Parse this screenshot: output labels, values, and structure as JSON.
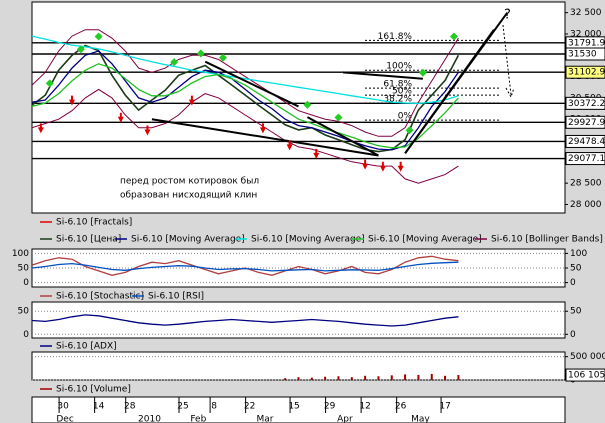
{
  "chart_data": [
    {
      "type": "line",
      "x": [
        0,
        3,
        6,
        9,
        12,
        15,
        18,
        21,
        24,
        27,
        30,
        33,
        36,
        39,
        42,
        45,
        48,
        51,
        54,
        57,
        60,
        63,
        66,
        69,
        72,
        75,
        78,
        81,
        84,
        87,
        90,
        93,
        96
      ],
      "xlim": [
        0,
        120
      ],
      "ylim": [
        27800,
        32750
      ],
      "yticks": [
        {
          "value": 28000,
          "label": "28 000"
        },
        {
          "value": 28500,
          "label": "28 500"
        },
        {
          "value": 29000,
          "label": "29 000"
        },
        {
          "value": 29500,
          "label": "29 500"
        },
        {
          "value": 30000,
          "label": "30 000"
        },
        {
          "value": 30500,
          "label": "30 500"
        },
        {
          "value": 31000,
          "label": "31 000"
        },
        {
          "value": 31500,
          "label": "31 500"
        },
        {
          "value": 32000,
          "label": "32 000"
        },
        {
          "value": 32500,
          "label": "32 500"
        }
      ],
      "fractals": {
        "name": "Si-6.10 [Fractals]",
        "color": "#e00000",
        "up_color": "#22cc22",
        "up": {
          "x": [
            4,
            11,
            15,
            32,
            38,
            43,
            62,
            69,
            85,
            88,
            95
          ],
          "values": [
            30700,
            31500,
            31800,
            31200,
            31400,
            31300,
            30200,
            29900,
            29600,
            30950,
            31800
          ]
        },
        "down": {
          "x": [
            2,
            9,
            20,
            26,
            36,
            52,
            58,
            64,
            75,
            79,
            83
          ],
          "values": [
            29950,
            30600,
            30200,
            29900,
            30600,
            29950,
            29550,
            29350,
            29100,
            29050,
            29050
          ]
        }
      },
      "series": [
        {
          "name": "Si-6.10 [Цена]",
          "color": "#1a3a1a",
          "values": [
            30330,
            30565,
            31150,
            31500,
            31730,
            31610,
            31030,
            30565,
            30215,
            30450,
            30680,
            31030,
            31150,
            31260,
            31030,
            30800,
            30565,
            30330,
            30100,
            29870,
            29750,
            29800,
            29630,
            29520,
            29400,
            29290,
            29240,
            29290,
            29520,
            30215,
            30565,
            30910,
            31500
          ]
        },
        {
          "name": "Si-6.10 [Moving Average]",
          "color": "#000080",
          "values": [
            30400,
            30450,
            30800,
            31200,
            31500,
            31600,
            31300,
            30900,
            30500,
            30400,
            30500,
            30750,
            31000,
            31150,
            31100,
            30950,
            30700,
            30450,
            30250,
            30000,
            29850,
            29800,
            29700,
            29600,
            29480,
            29380,
            29300,
            29280,
            29380,
            29800,
            30300,
            30650,
            31100
          ]
        },
        {
          "name": "Si-6.10 [Moving Average]",
          "color": "#00e0e0",
          "values": [
            31950,
            31880,
            31800,
            31740,
            31700,
            31650,
            31580,
            31500,
            31420,
            31350,
            31280,
            31220,
            31150,
            31100,
            31050,
            31000,
            30950,
            30900,
            30850,
            30800,
            30750,
            30700,
            30650,
            30600,
            30550,
            30500,
            30450,
            30400,
            30380,
            30370,
            30400,
            30450,
            30550
          ]
        },
        {
          "name": "Si-6.10 [Moving Average]",
          "color": "#22c022",
          "values": [
            30300,
            30380,
            30600,
            30900,
            31150,
            31300,
            31200,
            30950,
            30700,
            30550,
            30550,
            30650,
            30850,
            31000,
            31050,
            30950,
            30800,
            30600,
            30400,
            30200,
            30000,
            29900,
            29780,
            29680,
            29580,
            29470,
            29380,
            29330,
            29350,
            29550,
            29850,
            30150,
            30500
          ]
        }
      ],
      "bands": {
        "name": "Si-6.10 [Bollinger Bands]",
        "color": "#800040",
        "upper": [
          30800,
          31100,
          31600,
          31950,
          32100,
          32100,
          31900,
          31600,
          31200,
          31100,
          31200,
          31400,
          31500,
          31500,
          31400,
          31200,
          31000,
          30800,
          30600,
          30400,
          30200,
          30100,
          30000,
          29950,
          29850,
          29700,
          29600,
          29600,
          29800,
          30400,
          30900,
          31400,
          31900
        ],
        "lower": [
          29800,
          29900,
          30000,
          30200,
          30500,
          30700,
          30500,
          30100,
          29800,
          29800,
          29900,
          30100,
          30400,
          30600,
          30500,
          30300,
          30100,
          29900,
          29700,
          29500,
          29350,
          29300,
          29200,
          29100,
          29000,
          28950,
          28900,
          28900,
          28600,
          28500,
          28600,
          28700,
          28900
        ]
      },
      "levels": [
        31791.9,
        31530,
        31102.9,
        30372.2,
        29927.9,
        29478.4,
        29077.1
      ],
      "fibo": [
        {
          "value": 31850,
          "label": "161.8%"
        },
        {
          "value": 31150,
          "label": "100%"
        },
        {
          "value": 30730,
          "label": "61.8%"
        },
        {
          "value": 30565,
          "label": "50%"
        },
        {
          "value": 30380,
          "label": "38.2%"
        },
        {
          "value": 29980,
          "label": "0%"
        }
      ],
      "trendlines": [
        [
          39,
          31350,
          60,
          30300
        ],
        [
          27,
          30000,
          78,
          29150
        ],
        [
          62,
          30050,
          78,
          29150
        ],
        [
          70,
          31100,
          88,
          30950
        ],
        [
          84,
          29200,
          107,
          32500
        ],
        [
          84,
          29200,
          104,
          32100
        ]
      ],
      "annotations": [
        "перед ростом котировок был",
        "образован нисходящий клин",
        "?"
      ]
    },
    {
      "type": "line",
      "x": [
        0,
        3,
        6,
        9,
        12,
        15,
        18,
        21,
        24,
        27,
        30,
        33,
        36,
        39,
        42,
        45,
        48,
        51,
        54,
        57,
        60,
        63,
        66,
        69,
        72,
        75,
        78,
        81,
        84,
        87,
        90,
        93,
        96
      ],
      "xlim": [
        0,
        120
      ],
      "ylim": [
        -15,
        115
      ],
      "yticks": [
        0,
        50,
        100
      ],
      "series": [
        {
          "name": "Si-6.10 [Stochastic]",
          "color": "#b04040",
          "values": [
            60,
            75,
            85,
            80,
            55,
            40,
            25,
            35,
            55,
            70,
            65,
            75,
            60,
            45,
            30,
            40,
            50,
            35,
            25,
            40,
            55,
            45,
            30,
            40,
            55,
            35,
            30,
            45,
            70,
            85,
            90,
            80,
            75
          ]
        },
        {
          "name": "Si-6.10 [RSI]",
          "color": "#0050c0",
          "values": [
            50,
            55,
            62,
            65,
            60,
            52,
            45,
            42,
            48,
            52,
            55,
            58,
            56,
            50,
            45,
            47,
            48,
            45,
            40,
            42,
            44,
            45,
            40,
            42,
            44,
            43,
            42,
            48,
            55,
            62,
            66,
            68,
            70
          ]
        }
      ]
    },
    {
      "type": "line",
      "x": [
        0,
        3,
        6,
        9,
        12,
        15,
        18,
        21,
        24,
        27,
        30,
        33,
        36,
        39,
        42,
        45,
        48,
        51,
        54,
        57,
        60,
        63,
        66,
        69,
        72,
        75,
        78,
        81,
        84,
        87,
        90,
        93,
        96
      ],
      "xlim": [
        0,
        120
      ],
      "ylim": [
        -8,
        70
      ],
      "yticks": [
        0,
        50
      ],
      "series": [
        {
          "name": "Si-6.10 [ADX]",
          "color": "#000080",
          "values": [
            30,
            28,
            32,
            38,
            42,
            40,
            35,
            30,
            25,
            22,
            20,
            22,
            25,
            28,
            30,
            32,
            30,
            28,
            26,
            28,
            30,
            32,
            30,
            28,
            25,
            22,
            20,
            18,
            20,
            25,
            30,
            35,
            38
          ]
        }
      ]
    },
    {
      "type": "bar",
      "x": [
        0,
        3,
        6,
        9,
        12,
        15,
        18,
        21,
        24,
        27,
        30,
        33,
        36,
        39,
        42,
        45,
        48,
        51,
        54,
        57,
        60,
        63,
        66,
        69,
        72,
        75,
        78,
        81,
        84,
        87,
        90,
        93,
        96
      ],
      "xlim": [
        0,
        120
      ],
      "ylim": [
        0,
        600000
      ],
      "yticks": [
        0,
        {
          "value": 500000,
          "label": "500 000"
        }
      ],
      "series": [
        {
          "name": "Si-6.10 [Volume]",
          "color": "#a00000",
          "values": [
            0,
            0,
            0,
            0,
            0,
            0,
            0,
            0,
            0,
            0,
            0,
            0,
            0,
            0,
            0,
            0,
            0,
            0,
            0,
            40000,
            60000,
            50000,
            70000,
            80000,
            60000,
            90000,
            80000,
            100000,
            120000,
            110000,
            130000,
            90000,
            106105
          ],
          "value_labels": [
            null,
            null,
            null,
            null,
            null,
            null,
            null,
            null,
            null,
            null,
            null,
            null,
            null,
            null,
            null,
            null,
            null,
            null,
            null,
            null,
            null,
            null,
            null,
            null,
            null,
            null,
            null,
            null,
            null,
            null,
            null,
            null,
            "106 105"
          ]
        }
      ],
      "xticks": [
        {
          "value": 7,
          "label": "30"
        },
        {
          "value": 15,
          "label": "14"
        },
        {
          "value": 22,
          "label": "28"
        },
        {
          "value": 34,
          "label": "25"
        },
        {
          "value": 41,
          "label": "8"
        },
        {
          "value": 49,
          "label": "22"
        },
        {
          "value": 59,
          "label": "15"
        },
        {
          "value": 67,
          "label": "29"
        },
        {
          "value": 75,
          "label": "12"
        },
        {
          "value": 83,
          "label": "26"
        },
        {
          "value": 93,
          "label": "17"
        }
      ],
      "months": [
        {
          "value": 7,
          "label": "Dec"
        },
        {
          "value": 26,
          "label": "2010"
        },
        {
          "value": 37,
          "label": "Feb"
        },
        {
          "value": 52,
          "label": "Mar"
        },
        {
          "value": 70,
          "label": "Apr"
        },
        {
          "value": 87,
          "label": "May"
        }
      ]
    }
  ]
}
